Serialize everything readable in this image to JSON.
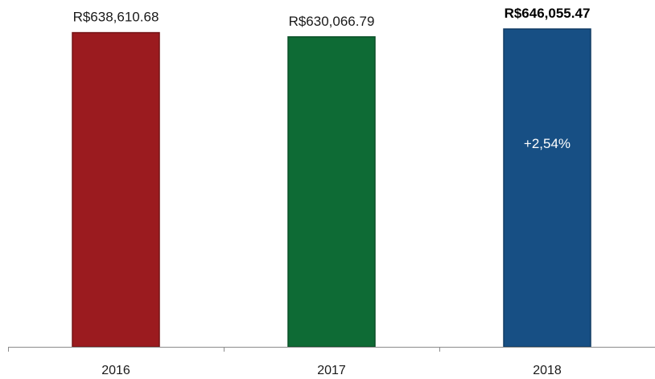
{
  "chart_data": {
    "type": "bar",
    "title": "",
    "xlabel": "",
    "ylabel": "",
    "categories": [
      "2016",
      "2017",
      "2018"
    ],
    "values": [
      638610.68,
      630066.79,
      646055.47
    ],
    "value_labels": [
      "R$638,610.68",
      "R$630,066.79",
      "R$646,055.47"
    ],
    "bold_labels": [
      false,
      false,
      true
    ],
    "colors": [
      "#9b1b1f",
      "#0e6b35",
      "#174f84"
    ],
    "annotations": [
      {
        "category": "2018",
        "text": "+2,54%"
      }
    ],
    "ylim": [
      0,
      705000
    ],
    "grid": false,
    "legend": "none",
    "y_axis_visible": false
  }
}
